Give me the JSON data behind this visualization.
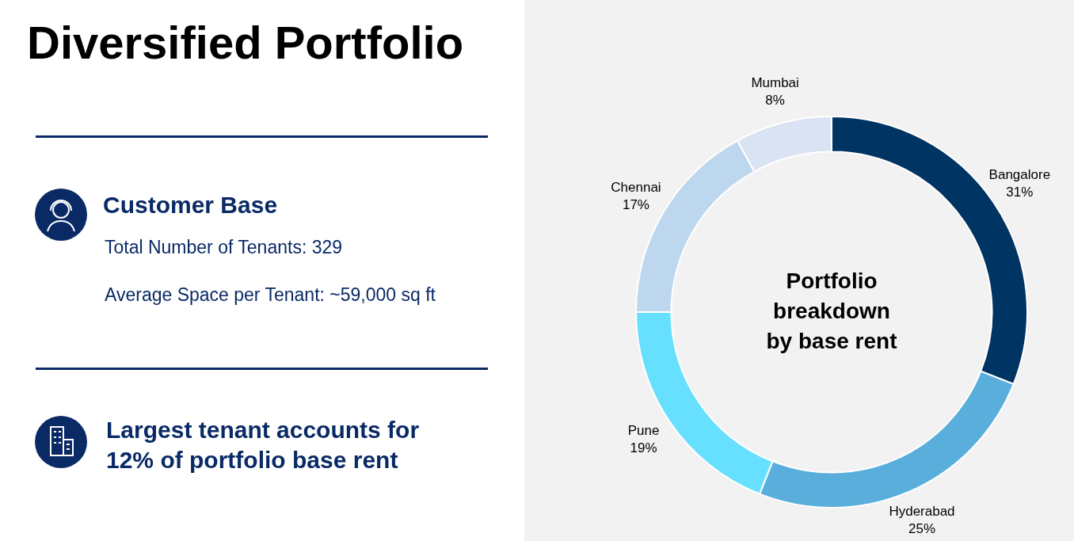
{
  "chart_data": {
    "type": "donut",
    "title": "Diversified Portfolio",
    "subtitle": "Portfolio breakdown by base rent",
    "categories": [
      "Bangalore",
      "Hyderabad",
      "Pune",
      "Chennai",
      "Mumbai"
    ],
    "values": [
      31,
      25,
      19,
      17,
      8
    ],
    "colors": [
      "#003462",
      "#5aaedc",
      "#66e0fe",
      "#bdd7ee",
      "#dae3f3"
    ],
    "value_labels": [
      "31%",
      "25%",
      "19%",
      "17%",
      "8%"
    ],
    "legend": false,
    "annotations": [
      "Customer Base",
      "Total Number of Tenants: 329",
      "Average Space per Tenant: ~59,000 sq ft",
      "Largest tenant accounts for 12% of portfolio base rent"
    ]
  }
}
